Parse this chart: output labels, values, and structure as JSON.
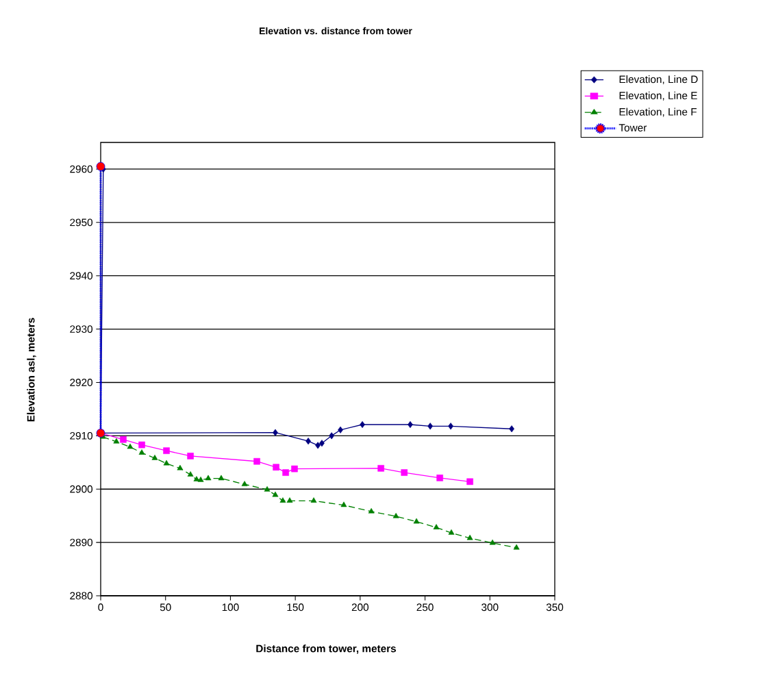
{
  "chart_data": {
    "type": "line",
    "title": "Elevation vs. distance from tower",
    "xlabel": "Distance from tower, meters",
    "ylabel": "Elevation asl, meters",
    "xlim": [
      0,
      350
    ],
    "ylim": [
      2880,
      2965
    ],
    "xticks": [
      0,
      50,
      100,
      150,
      200,
      250,
      300,
      350
    ],
    "yticks": [
      2880,
      2890,
      2900,
      2910,
      2920,
      2930,
      2940,
      2950,
      2960
    ],
    "grid": "y",
    "legend": "top right",
    "series": [
      {
        "name": "Elevation, Line D",
        "color": "#000080",
        "marker": "diamond",
        "line_style": "solid",
        "x": [
          2,
          0,
          134.6,
          160,
          167.4,
          170.5,
          178,
          184.8,
          201.7,
          238.6,
          254,
          269.8,
          316.8
        ],
        "values": [
          2960,
          2910.5,
          2910.6,
          2909.0,
          2908.2,
          2908.6,
          2910.0,
          2911.1,
          2912.1,
          2912.1,
          2911.8,
          2911.8,
          2911.3
        ]
      },
      {
        "name": "Elevation, Line E",
        "color": "#ff00ff",
        "marker": "square",
        "line_style": "solid",
        "x": [
          0,
          17.4,
          31.7,
          50.7,
          69.2,
          120.4,
          135.2,
          142.6,
          149.4,
          216,
          234,
          261.4,
          284.6
        ],
        "values": [
          2910.5,
          2909.3,
          2908.3,
          2907.2,
          2906.2,
          2905.2,
          2904.1,
          2903.1,
          2903.8,
          2903.9,
          2903.1,
          2902.1,
          2901.4
        ]
      },
      {
        "name": "Elevation, Line F",
        "color": "#008000",
        "marker": "triangle",
        "line_style": "dashed",
        "x": [
          1.6,
          12.1,
          22.7,
          31.7,
          41.7,
          50.7,
          61.2,
          69.2,
          73.9,
          77.1,
          82.9,
          92.9,
          110.9,
          128.3,
          134.6,
          140.4,
          145.7,
          164.2,
          187.4,
          208.6,
          227.6,
          243.4,
          258.7,
          270.3,
          284.6,
          302,
          320.5
        ],
        "values": [
          2909.8,
          2908.9,
          2907.9,
          2906.8,
          2905.8,
          2904.8,
          2903.9,
          2902.7,
          2901.8,
          2901.7,
          2902.0,
          2902.0,
          2900.9,
          2899.9,
          2898.9,
          2897.8,
          2897.8,
          2897.8,
          2897.0,
          2895.8,
          2894.9,
          2893.9,
          2892.8,
          2891.8,
          2890.8,
          2889.9,
          2889.0
        ]
      },
      {
        "name": "Tower",
        "color": "#0000ff",
        "colors": [
          "#ff0000",
          "#ff0000"
        ],
        "marker": "circle",
        "line_style": "dotted",
        "x": [
          0,
          0
        ],
        "values": [
          2910.5,
          2960.5
        ]
      }
    ]
  }
}
